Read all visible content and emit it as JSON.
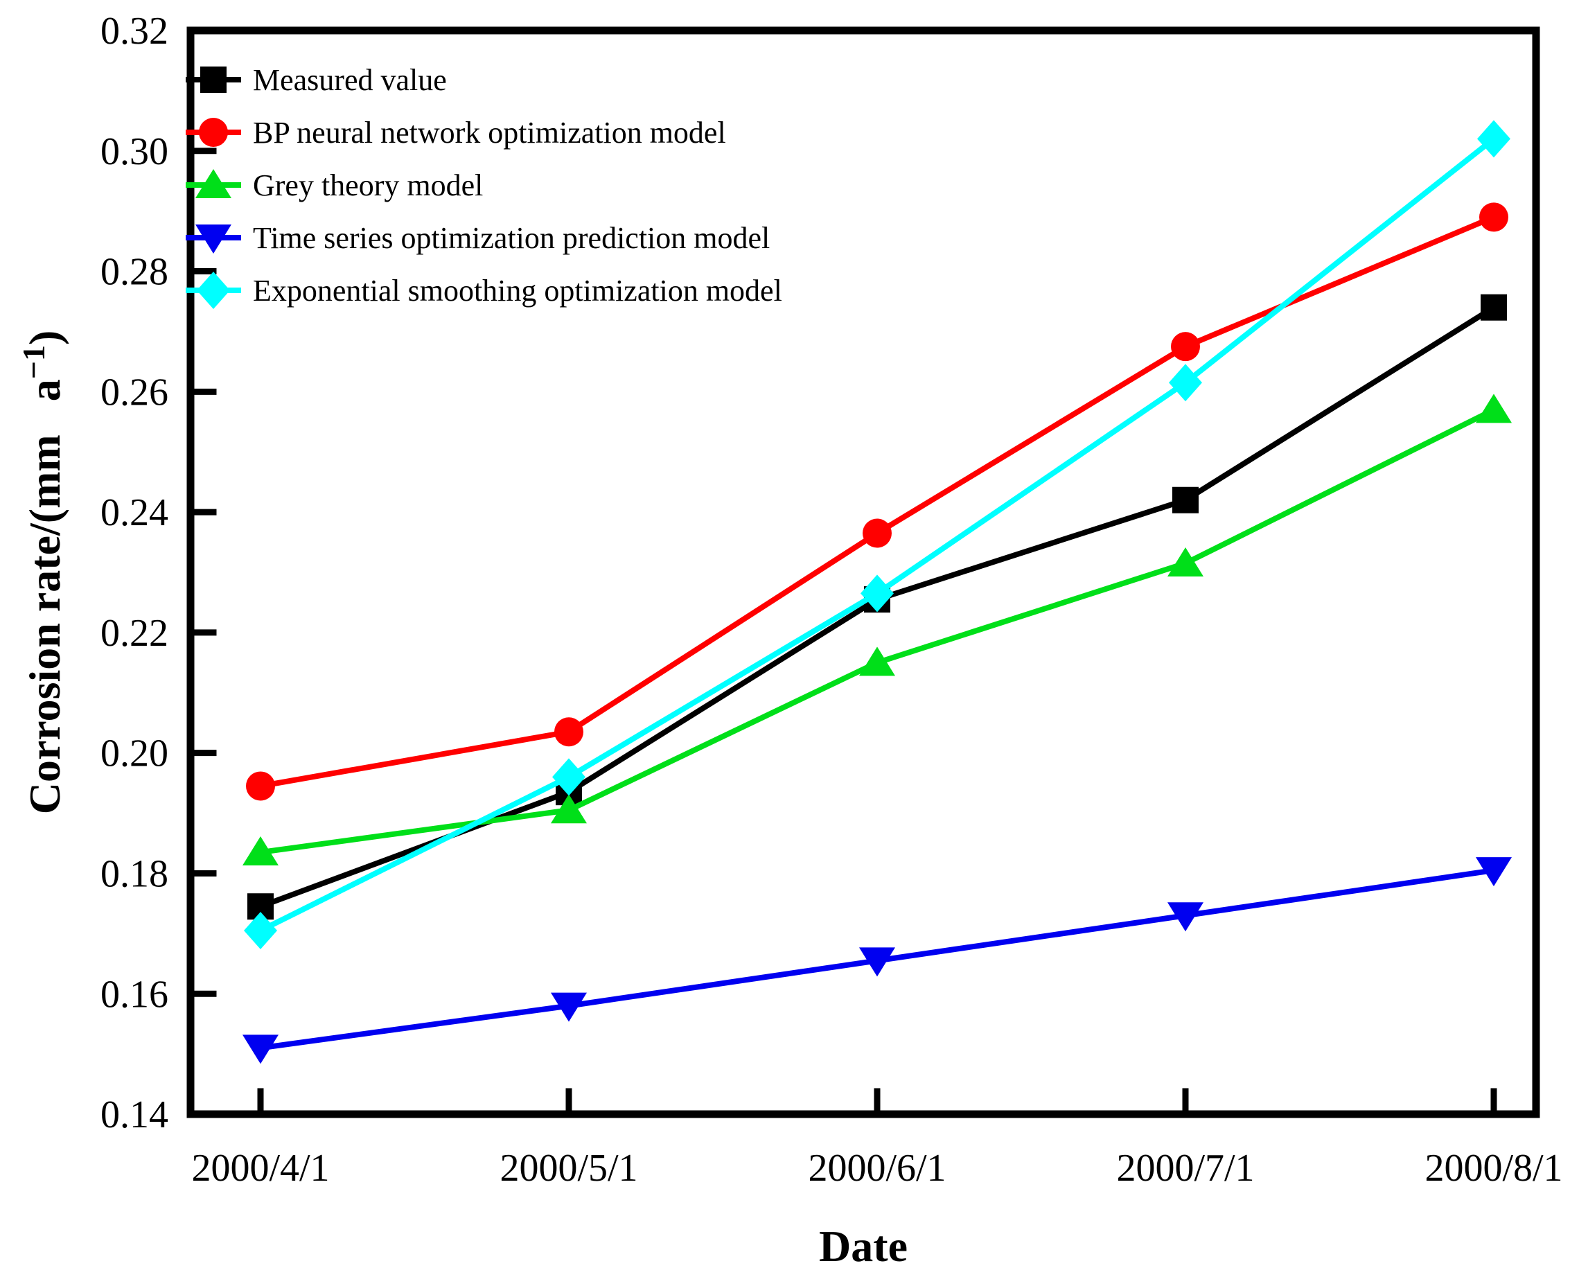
{
  "chart_data": {
    "type": "line",
    "title": "",
    "xlabel": "Date",
    "ylabel": {
      "prefix": "Corrosion rate/(mm   a",
      "sup": "−1",
      "suffix": ")"
    },
    "categories": [
      "2000/4/1",
      "2000/5/1",
      "2000/6/1",
      "2000/7/1",
      "2000/8/1"
    ],
    "yticks": [
      "0.14",
      "0.16",
      "0.18",
      "0.20",
      "0.22",
      "0.24",
      "0.26",
      "0.28",
      "0.30",
      "0.32"
    ],
    "ylim": [
      0.14,
      0.32
    ],
    "ytick_step": 0.02,
    "grid": false,
    "legend_position": "top-left-inside",
    "series": [
      {
        "name": "Measured value",
        "color": "#000000",
        "marker": "square",
        "values": [
          0.1745,
          0.1935,
          0.2255,
          0.242,
          0.274
        ]
      },
      {
        "name": "BP neural network optimization model",
        "color": "#FF0000",
        "marker": "circle",
        "values": [
          0.1945,
          0.2035,
          0.2365,
          0.2675,
          0.289
        ]
      },
      {
        "name": "Grey theory model",
        "color": "#00DF19",
        "marker": "triangle-up",
        "values": [
          0.1835,
          0.1905,
          0.215,
          0.2315,
          0.257
        ]
      },
      {
        "name": "Time series optimization prediction model",
        "color": "#0000F0",
        "marker": "triangle-down",
        "values": [
          0.151,
          0.158,
          0.1655,
          0.173,
          0.1805
        ]
      },
      {
        "name": "Exponential smoothing optimization model",
        "color": "#00FFFF",
        "marker": "diamond",
        "values": [
          0.1705,
          0.196,
          0.2265,
          0.2615,
          0.302
        ]
      }
    ]
  }
}
